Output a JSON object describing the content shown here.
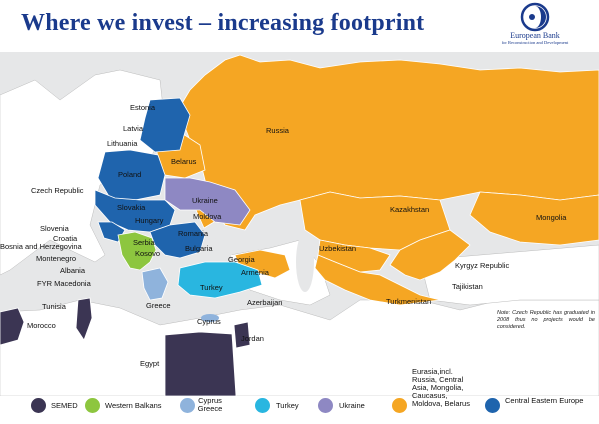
{
  "title": "Where we invest – increasing footprint",
  "logo": {
    "name": "European Bank",
    "sub": "for Reconstruction and Development"
  },
  "colors": {
    "semed": "#3b3553",
    "western_balkans": "#8dc63f",
    "cyprus_greece": "#8fb3dc",
    "turkey": "#29b6e0",
    "ukraine": "#8e88c3",
    "eurasia": "#f5a623",
    "central_eastern_europe": "#1f64ad",
    "land": "#ffffff",
    "sea": "#e6e7e8"
  },
  "labels": {
    "estonia": "Estonia",
    "latvia": "Latvia",
    "lithuania": "Lithuania",
    "russia": "Russia",
    "belarus": "Belarus",
    "poland": "Poland",
    "czech": "Czech Republic",
    "ukraine": "Ukraine",
    "slovakia": "Slovakia",
    "moldova": "Moldova",
    "hungary": "Hungary",
    "slovenia": "Slovenia",
    "croatia": "Croatia",
    "serbia": "Serbia",
    "romania": "Romania",
    "bosnia": "Bosnia and Herzegovina",
    "kosovo": "Kosovo",
    "bulgaria": "Bulgaria",
    "montenegro": "Montenegro",
    "georgia": "Georgia",
    "albania": "Albania",
    "armenia": "Armenia",
    "fyr": "FYR Macedonia",
    "turkey": "Turkey",
    "azerbaijan": "Azerbaijan",
    "tunisia": "Tunisia",
    "greece": "Greece",
    "morocco": "Morocco",
    "cyprus": "Cyprus",
    "jordan": "Jordan",
    "egypt": "Egypt",
    "kazakhstan": "Kazakhstan",
    "mongolia": "Mongolia",
    "uzbekistan": "Uzbekistan",
    "kyrgyz": "Kyrgyz Republic",
    "tajikistan": "Tajikistan",
    "turkmenistan": "Turkmenistan"
  },
  "note": "Note: Czech Republic has graduated in 2008 thus no projects would be considered.",
  "legend": [
    {
      "label": "SEMED",
      "color": "#3b3553"
    },
    {
      "label": "Western Balkans",
      "color": "#8dc63f"
    },
    {
      "label": "Cyprus Greece",
      "color": "#8fb3dc"
    },
    {
      "label": "Turkey",
      "color": "#29b6e0"
    },
    {
      "label": "Ukraine",
      "color": "#8e88c3"
    },
    {
      "label": "Eurasia,incl. Russia, Central Asia, Mongolia, Caucasus, Moldova, Belarus",
      "color": "#f5a623"
    },
    {
      "label": "Central Eastern Europe",
      "color": "#1f64ad"
    }
  ]
}
